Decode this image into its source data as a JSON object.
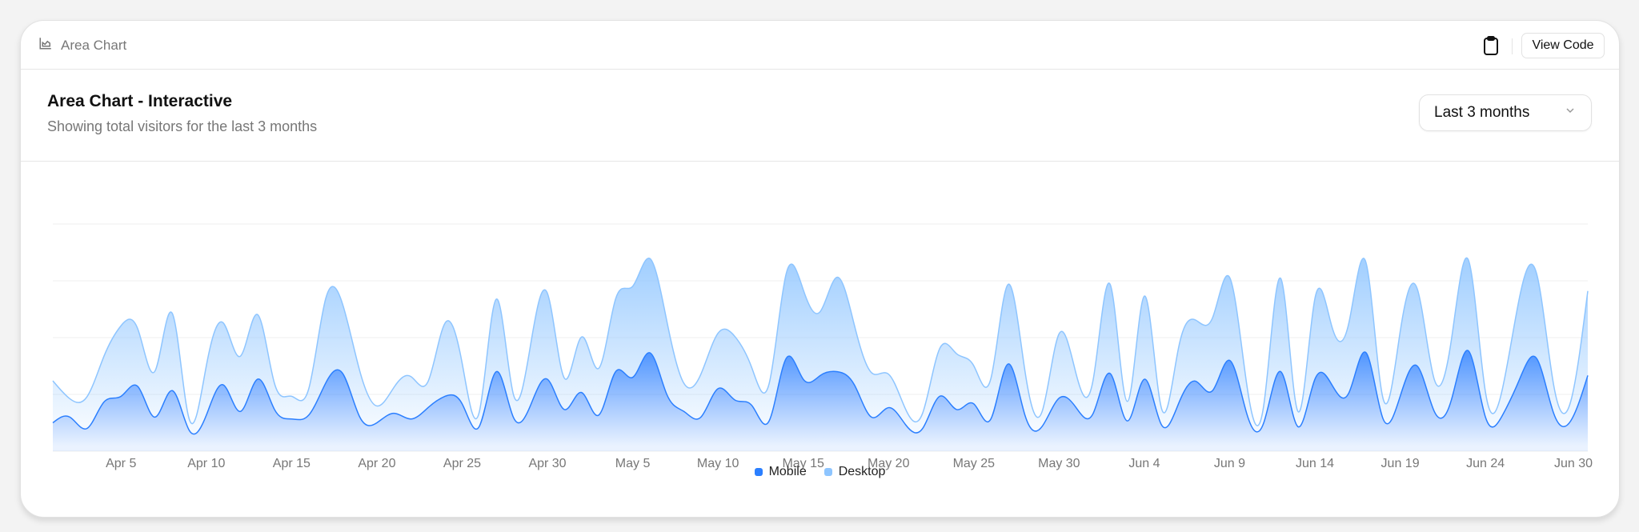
{
  "topbar": {
    "title": "Area Chart",
    "view_code": "View Code"
  },
  "header": {
    "title": "Area Chart - Interactive",
    "subtitle": "Showing total visitors for the last 3 months",
    "range_select": "Last 3 months"
  },
  "colors": {
    "mobile": "#2b7fff",
    "desktop": "#8ec5ff"
  },
  "chart_data": {
    "type": "area",
    "stacked": true,
    "title": "Area Chart - Interactive",
    "xlabel": "",
    "ylabel": "",
    "ylim": [
      0,
      1200
    ],
    "y_gridlines": [
      0,
      300,
      600,
      900,
      1200
    ],
    "grid": true,
    "legend_position": "bottom-center",
    "start_date": "2024-04-01",
    "x_tick_labels": [
      {
        "day_index": 4,
        "label": "Apr 5"
      },
      {
        "day_index": 9,
        "label": "Apr 10"
      },
      {
        "day_index": 14,
        "label": "Apr 15"
      },
      {
        "day_index": 19,
        "label": "Apr 20"
      },
      {
        "day_index": 24,
        "label": "Apr 25"
      },
      {
        "day_index": 29,
        "label": "Apr 30"
      },
      {
        "day_index": 34,
        "label": "May 5"
      },
      {
        "day_index": 39,
        "label": "May 10"
      },
      {
        "day_index": 44,
        "label": "May 15"
      },
      {
        "day_index": 49,
        "label": "May 20"
      },
      {
        "day_index": 54,
        "label": "May 25"
      },
      {
        "day_index": 59,
        "label": "May 30"
      },
      {
        "day_index": 64,
        "label": "Jun 4"
      },
      {
        "day_index": 69,
        "label": "Jun 9"
      },
      {
        "day_index": 74,
        "label": "Jun 14"
      },
      {
        "day_index": 79,
        "label": "Jun 19"
      },
      {
        "day_index": 84,
        "label": "Jun 24"
      },
      {
        "day_index": 90,
        "label": "Jun 30"
      }
    ],
    "series": [
      {
        "name": "Mobile",
        "values": [
          150,
          180,
          120,
          260,
          290,
          340,
          180,
          320,
          110,
          190,
          350,
          210,
          380,
          220,
          170,
          190,
          360,
          410,
          180,
          150,
          200,
          170,
          230,
          290,
          250,
          130,
          420,
          180,
          240,
          380,
          220,
          310,
          190,
          420,
          390,
          520,
          300,
          210,
          180,
          330,
          270,
          240,
          160,
          490,
          380,
          400,
          420,
          350,
          180,
          230,
          140,
          120,
          290,
          220,
          250,
          170,
          460,
          190,
          130,
          280,
          230,
          200,
          410,
          160,
          380,
          140,
          250,
          370,
          320,
          480,
          200,
          150,
          420,
          130,
          380,
          350,
          310,
          520,
          170,
          290,
          450,
          210,
          270,
          530,
          180,
          190,
          380,
          490,
          200,
          160,
          400
        ]
      },
      {
        "name": "Desktop",
        "values": [
          222,
          97,
          167,
          242,
          373,
          301,
          245,
          409,
          59,
          261,
          327,
          292,
          342,
          137,
          120,
          138,
          446,
          364,
          243,
          89,
          137,
          224,
          138,
          387,
          215,
          75,
          383,
          122,
          315,
          454,
          165,
          293,
          247,
          385,
          481,
          498,
          388,
          149,
          227,
          293,
          335,
          197,
          197,
          448,
          473,
          338,
          499,
          315,
          235,
          177,
          82,
          81,
          252,
          294,
          201,
          213,
          420,
          233,
          78,
          340,
          178,
          178,
          470,
          103,
          439,
          88,
          294,
          323,
          385,
          438,
          155,
          92,
          492,
          81,
          426,
          307,
          371,
          475,
          107,
          341,
          408,
          169,
          317,
          480,
          132,
          141,
          434,
          448,
          149,
          103,
          446
        ]
      }
    ]
  }
}
